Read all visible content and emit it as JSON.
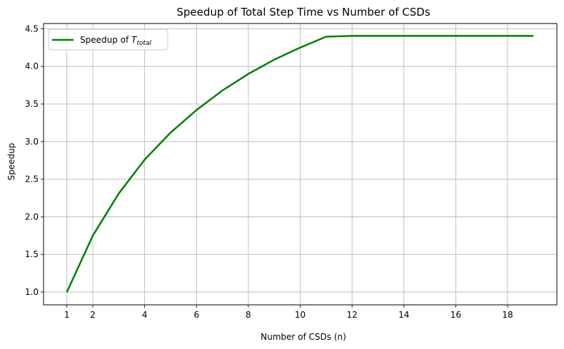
{
  "chart_data": {
    "type": "line",
    "title": "Speedup of Total Step Time vs Number of CSDs",
    "xlabel": "Number of CSDs (n)",
    "ylabel": "Speedup",
    "x": [
      1,
      2,
      3,
      4,
      5,
      6,
      7,
      8,
      9,
      10,
      11,
      12,
      13,
      14,
      15,
      16,
      17,
      18,
      19
    ],
    "xticks": [
      1,
      2,
      4,
      6,
      8,
      10,
      12,
      14,
      16,
      18
    ],
    "yticks": [
      1.0,
      1.5,
      2.0,
      2.5,
      3.0,
      3.5,
      4.0,
      4.5
    ],
    "ytick_labels": [
      "1.0",
      "1.5",
      "2.0",
      "2.5",
      "3.0",
      "3.5",
      "4.0",
      "4.5"
    ],
    "xlim": [
      0.1,
      19.9
    ],
    "ylim": [
      0.83,
      4.57
    ],
    "grid": true,
    "legend_position": "top-left",
    "series": [
      {
        "name": "Speedup of ",
        "name_math_base": "T",
        "name_math_sub": "total",
        "color": "#008000",
        "values": [
          1.0,
          1.75,
          2.31,
          2.76,
          3.12,
          3.42,
          3.68,
          3.9,
          4.09,
          4.25,
          4.395,
          4.405,
          4.405,
          4.405,
          4.405,
          4.405,
          4.405,
          4.405,
          4.405
        ]
      }
    ]
  }
}
